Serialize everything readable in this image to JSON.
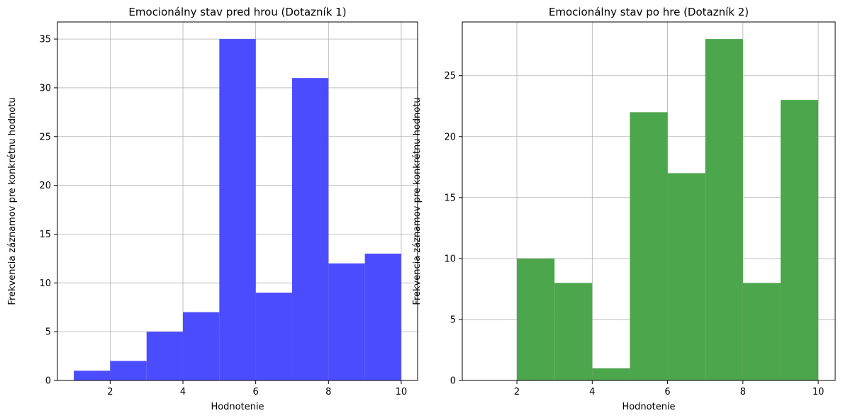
{
  "chart_data": [
    {
      "type": "bar",
      "title": "Emocionálny stav pred hrou (Dotazník 1)",
      "xlabel": "Hodnotenie",
      "ylabel": "Frekvencia záznamov pre konkrétnu hodnotu",
      "bins": [
        [
          1,
          2
        ],
        [
          2,
          3
        ],
        [
          3,
          4
        ],
        [
          4,
          5
        ],
        [
          5,
          6
        ],
        [
          6,
          7
        ],
        [
          7,
          8
        ],
        [
          8,
          9
        ],
        [
          9,
          10
        ]
      ],
      "values": [
        1,
        2,
        5,
        7,
        35,
        9,
        31,
        12,
        13
      ],
      "color": "#4c4cff",
      "xlim": [
        0.55,
        10.45
      ],
      "ylim": [
        0,
        36.75
      ],
      "xticks": [
        2,
        4,
        6,
        8,
        10
      ],
      "yticks": [
        0,
        5,
        10,
        15,
        20,
        25,
        30,
        35
      ],
      "grid": true
    },
    {
      "type": "bar",
      "title": "Emocionálny stav po hre (Dotazník 2)",
      "xlabel": "Hodnotenie",
      "ylabel": "Frekvencia záznamov pre konkrétnu hodnotu",
      "bins": [
        [
          1,
          2
        ],
        [
          2,
          3
        ],
        [
          3,
          4
        ],
        [
          4,
          5
        ],
        [
          5,
          6
        ],
        [
          6,
          7
        ],
        [
          7,
          8
        ],
        [
          8,
          9
        ],
        [
          9,
          10
        ]
      ],
      "values": [
        0,
        10,
        8,
        1,
        22,
        17,
        28,
        8,
        23
      ],
      "color": "#4ca64c",
      "xlim": [
        0.55,
        10.45
      ],
      "ylim": [
        0,
        29.4
      ],
      "xticks": [
        2,
        4,
        6,
        8,
        10
      ],
      "yticks": [
        0,
        5,
        10,
        15,
        20,
        25
      ],
      "grid": true
    }
  ]
}
